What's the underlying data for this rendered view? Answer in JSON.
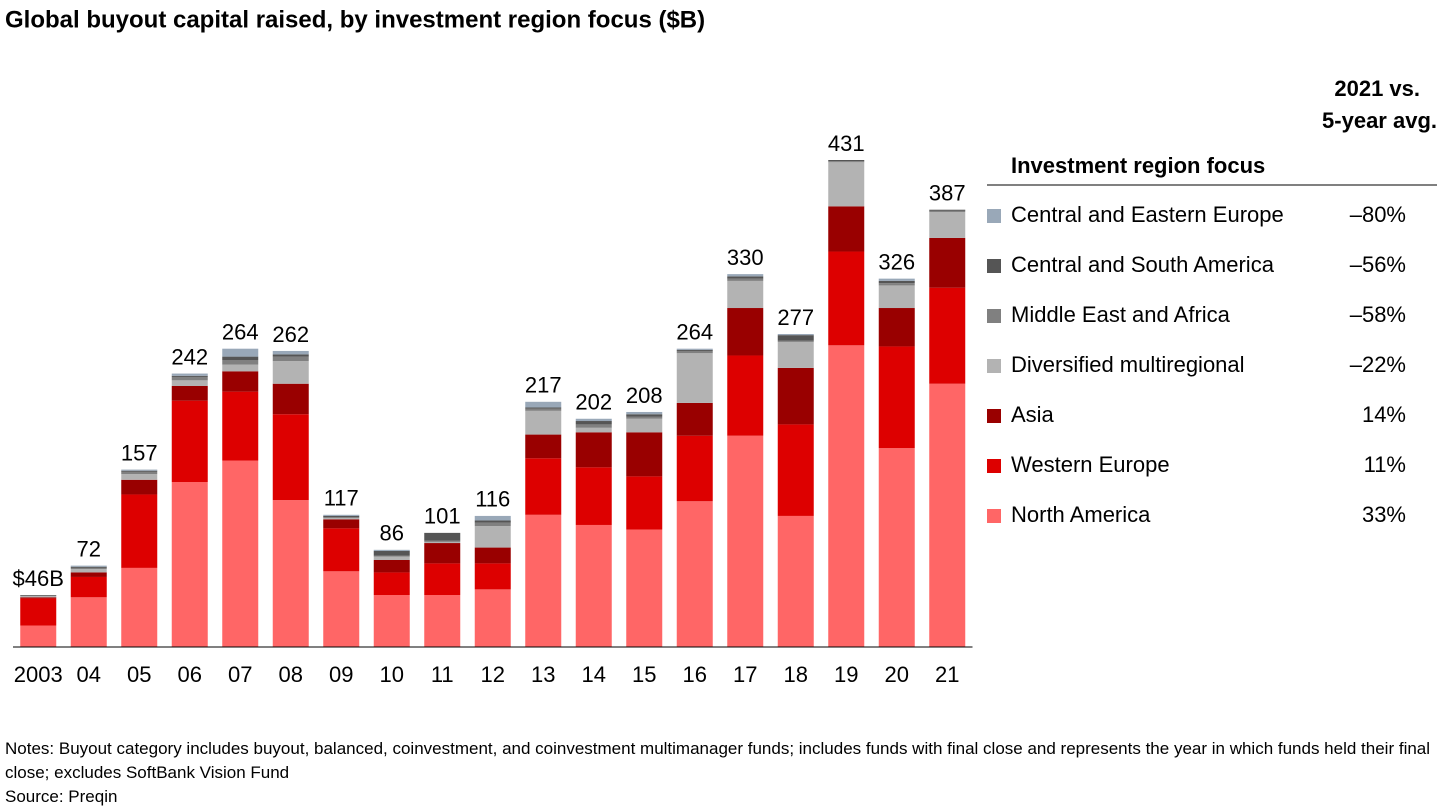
{
  "chart_data": {
    "type": "stacked_bar",
    "title": "Global buyout capital raised, by investment region focus ($B)",
    "categories": [
      "2003",
      "04",
      "05",
      "06",
      "07",
      "08",
      "09",
      "10",
      "11",
      "12",
      "13",
      "14",
      "15",
      "16",
      "17",
      "18",
      "19",
      "20",
      "21"
    ],
    "series": [
      {
        "name": "North America",
        "color": "#ff6666",
        "change": "33%",
        "values": [
          19,
          44,
          70,
          146,
          165,
          130,
          67,
          46,
          46,
          51,
          117,
          108,
          104,
          129,
          187,
          116,
          267,
          176,
          233
        ]
      },
      {
        "name": "Western Europe",
        "color": "#dd0000",
        "change": "11%",
        "values": [
          24,
          18,
          65,
          72,
          61,
          76,
          38,
          20,
          28,
          23,
          50,
          51,
          47,
          58,
          71,
          81,
          83,
          90,
          85
        ]
      },
      {
        "name": "Asia",
        "color": "#990000",
        "change": "14%",
        "values": [
          1,
          4,
          13,
          13,
          18,
          27,
          8,
          11,
          18,
          14,
          21,
          31,
          39,
          29,
          42,
          50,
          40,
          34,
          44
        ]
      },
      {
        "name": "Diversified multiregional",
        "color": "#b3b3b3",
        "change": "–22%",
        "values": [
          1,
          3,
          5,
          5,
          6,
          20,
          1,
          3,
          1,
          19,
          21,
          4,
          12,
          44,
          24,
          23,
          39,
          20,
          23
        ]
      },
      {
        "name": "Middle East and Africa",
        "color": "#808080",
        "change": "–58%",
        "values": [
          0.5,
          1,
          2,
          3,
          4,
          4,
          1,
          1,
          1,
          3,
          2,
          3,
          2,
          2,
          2,
          1,
          1,
          2,
          1
        ]
      },
      {
        "name": "Central and South America",
        "color": "#555555",
        "change": "–56%",
        "values": [
          0.5,
          1,
          1,
          1,
          3,
          2,
          1,
          4,
          7,
          2,
          1,
          3,
          2,
          1,
          2,
          5,
          1,
          2,
          1
        ]
      },
      {
        "name": "Central and Eastern Europe",
        "color": "#99a8b8",
        "change": "–80%",
        "values": [
          0,
          1,
          1,
          2,
          7,
          3,
          1,
          1,
          0,
          4,
          5,
          2,
          2,
          1,
          2,
          1,
          0,
          2,
          0
        ]
      }
    ],
    "totals": {
      "values": [
        46,
        72,
        157,
        242,
        264,
        262,
        117,
        86,
        101,
        116,
        217,
        202,
        208,
        264,
        330,
        277,
        431,
        326,
        387
      ],
      "value_labels": [
        "$46B",
        "72",
        "157",
        "242",
        "264",
        "262",
        "117",
        "86",
        "101",
        "116",
        "217",
        "202",
        "208",
        "264",
        "330",
        "277",
        "431",
        "326",
        "387"
      ]
    },
    "legend_title": "Investment region focus",
    "change_header": [
      "2021 vs.",
      "5-year avg."
    ],
    "notes": "Notes: Buyout category includes buyout, balanced, coinvestment, and coinvestment multimanager funds; includes funds with final close and represents the year in which funds held their final close; excludes SoftBank Vision Fund",
    "source": "Source: Preqin"
  }
}
